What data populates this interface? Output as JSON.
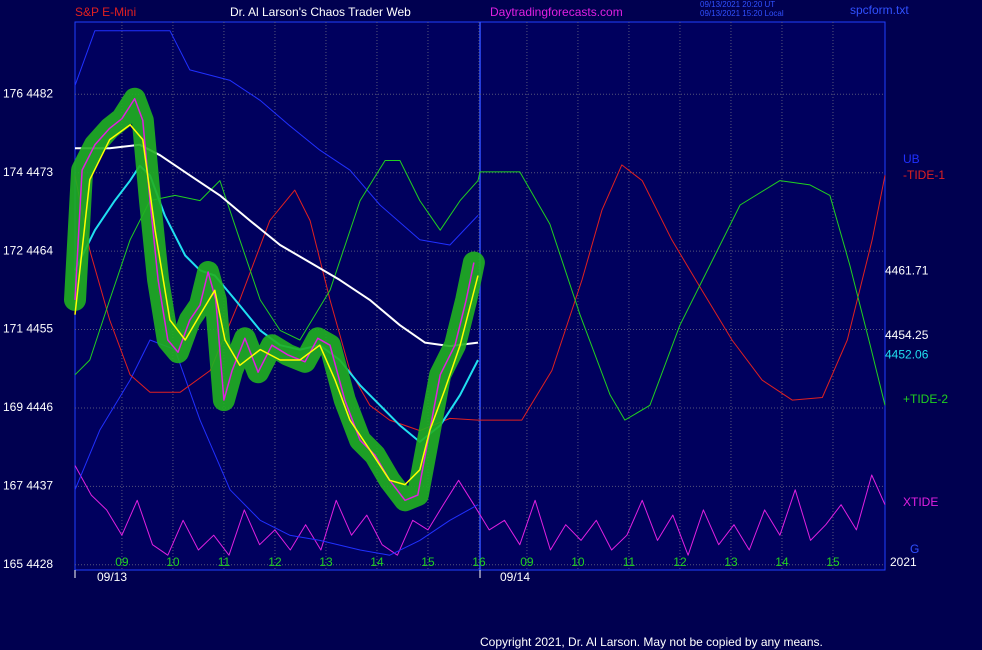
{
  "chart_data": {
    "type": "line",
    "header": {
      "instrument": "S&P E-Mini",
      "title": "Dr. Al Larson's Chaos Trader Web",
      "site": "Daytradingforecasts.com",
      "time_ut": "09/13/2021 20:20 UT",
      "time_local": "09/13/2021 15:20 Local",
      "file": "spcform.txt"
    },
    "dates": [
      "09/13",
      "09/14"
    ],
    "year": "2021",
    "corner_mark": "G",
    "copyright": "Copyright 2021, Dr. Al Larson. May not be copied by any means.",
    "xlim": [
      -0.92,
      14.96
    ],
    "ylim": [
      4427.4,
      4490.3
    ],
    "xticks": [
      {
        "value": 0,
        "label": "09"
      },
      {
        "value": 1,
        "label": "10"
      },
      {
        "value": 2,
        "label": "11"
      },
      {
        "value": 3,
        "label": "12"
      },
      {
        "value": 4,
        "label": "13"
      },
      {
        "value": 5,
        "label": "14"
      },
      {
        "value": 6,
        "label": "15"
      },
      {
        "value": 7,
        "label": "16"
      },
      {
        "value": 7.94,
        "label": "09"
      },
      {
        "value": 8.94,
        "label": "10"
      },
      {
        "value": 9.94,
        "label": "11"
      },
      {
        "value": 10.94,
        "label": "12"
      },
      {
        "value": 11.94,
        "label": "13"
      },
      {
        "value": 12.94,
        "label": "14"
      },
      {
        "value": 13.94,
        "label": "15"
      }
    ],
    "yticks": [
      {
        "value": 4428,
        "label": "165 4428"
      },
      {
        "value": 4437,
        "label": "167 4437"
      },
      {
        "value": 4446,
        "label": "169 4446"
      },
      {
        "value": 4455,
        "label": "171 4455"
      },
      {
        "value": 4464,
        "label": "172 4464"
      },
      {
        "value": 4473,
        "label": "174 4473"
      },
      {
        "value": 4482,
        "label": "176 4482"
      }
    ],
    "grid": true,
    "series": [
      {
        "name": "XTIDE",
        "color": "#e020e0",
        "width": 1,
        "x": [
          -0.92,
          -0.6,
          -0.3,
          0,
          0.3,
          0.6,
          0.9,
          1.2,
          1.5,
          1.8,
          2.1,
          2.4,
          2.7,
          3.0,
          3.3,
          3.6,
          3.9,
          4.2,
          4.5,
          4.8,
          5.1,
          5.4,
          5.7,
          6.0,
          6.3,
          6.6,
          6.9,
          7.2,
          7.5,
          7.8,
          8.1,
          8.4,
          8.7,
          9.0,
          9.3,
          9.6,
          9.9,
          10.2,
          10.5,
          10.8,
          11.1,
          11.4,
          11.7,
          12.0,
          12.3,
          12.6,
          12.9,
          13.2,
          13.5,
          13.8,
          14.1,
          14.4,
          14.7,
          14.96
        ],
        "values": [
          4439.4,
          4436.0,
          4434.3,
          4431.4,
          4435.4,
          4430.3,
          4429.1,
          4433.1,
          4429.7,
          4431.4,
          4429.1,
          4434.3,
          4430.3,
          4432.0,
          4429.7,
          4432.6,
          4429.7,
          4435.4,
          4431.4,
          4433.7,
          4430.3,
          4429.1,
          4433.1,
          4432.0,
          4434.9,
          4437.7,
          4434.9,
          4432.0,
          4433.1,
          4430.3,
          4435.4,
          4429.7,
          4432.6,
          4430.8,
          4433.1,
          4429.7,
          4431.4,
          4435.4,
          4430.8,
          4433.7,
          4429.1,
          4434.3,
          4430.3,
          4432.6,
          4429.7,
          4434.3,
          4431.4,
          4436.6,
          4430.8,
          4432.6,
          4434.9,
          4432.0,
          4438.3,
          4434.9
        ]
      },
      {
        "name": "UB",
        "color": "#2030ff",
        "width": 1,
        "x": [
          -0.92,
          -0.53,
          0.94,
          1.33,
          2.12,
          2.71,
          3.29,
          3.88,
          4.47,
          5.06,
          5.84,
          6.43,
          6.98
        ],
        "values": [
          4483.0,
          4489.3,
          4489.3,
          4484.8,
          4483.6,
          4481.3,
          4478.4,
          4475.6,
          4473.3,
          4469.3,
          4465.3,
          4464.7,
          4468.1
        ]
      },
      {
        "color": "#2030ff",
        "width": 1,
        "x": [
          -0.92,
          -0.43,
          0.16,
          0.55,
          1.04,
          1.53,
          2.12,
          2.71,
          3.29,
          3.88,
          4.67,
          5.25,
          5.84,
          6.43,
          6.98
        ],
        "values": [
          4436.6,
          4443.5,
          4449.2,
          4453.8,
          4452.7,
          4444.6,
          4436.6,
          4433.1,
          4431.4,
          4430.8,
          4429.7,
          4429.1,
          4430.8,
          4433.1,
          4434.9
        ]
      },
      {
        "name": "-TIDE-1",
        "color": "#e02020",
        "width": 1,
        "x": [
          -0.92,
          -0.63,
          -0.24,
          0.16,
          0.55,
          1.14,
          1.73,
          2.31,
          2.9,
          3.39,
          3.69,
          4.08,
          4.47,
          4.86,
          5.25,
          5.84,
          6.43,
          6.98,
          7.84,
          8.43,
          9.02,
          9.41,
          9.8,
          10.2,
          10.78,
          11.37,
          11.96,
          12.55,
          13.14,
          13.73,
          14.22,
          14.71,
          14.96
        ],
        "values": [
          4472.7,
          4464.1,
          4456.1,
          4449.8,
          4447.8,
          4447.8,
          4450.3,
          4458.4,
          4467.5,
          4471.0,
          4467.5,
          4458.4,
          4450.3,
          4446.3,
          4444.6,
          4443.4,
          4444.8,
          4444.6,
          4444.6,
          4450.3,
          4460.7,
          4468.7,
          4473.9,
          4472.1,
          4465.3,
          4459.5,
          4453.8,
          4449.2,
          4446.9,
          4447.2,
          4453.8,
          4465.3,
          4472.7
        ]
      },
      {
        "name": "+TIDE-2",
        "color": "#20d020",
        "width": 1,
        "x": [
          -0.92,
          -0.63,
          -0.24,
          0.16,
          0.55,
          1.04,
          1.53,
          1.92,
          2.31,
          2.71,
          3.1,
          3.49,
          4.08,
          4.67,
          5.16,
          5.45,
          5.84,
          6.24,
          6.63,
          6.98,
          7.02,
          7.8,
          8.39,
          8.98,
          9.57,
          9.86,
          10.35,
          10.94,
          11.53,
          12.12,
          12.9,
          13.49,
          13.88,
          14.27,
          14.67,
          14.96
        ],
        "values": [
          4449.8,
          4451.5,
          4458.4,
          4465.3,
          4469.8,
          4470.4,
          4469.8,
          4472.1,
          4465.3,
          4458.4,
          4454.9,
          4453.8,
          4459.5,
          4469.8,
          4474.4,
          4474.4,
          4469.8,
          4466.4,
          4469.8,
          4472.1,
          4473.1,
          4473.1,
          4467.1,
          4456.7,
          4447.5,
          4444.6,
          4446.3,
          4455.5,
          4462.4,
          4469.3,
          4472.1,
          4471.6,
          4470.4,
          4462.4,
          4453.2,
          4446.3
        ]
      },
      {
        "color": "#ffffff",
        "width": 2,
        "last_value": 4454.25,
        "x": [
          -0.92,
          -0.24,
          0.35,
          0.75,
          1.33,
          1.92,
          2.51,
          3.1,
          3.69,
          4.27,
          4.86,
          5.45,
          5.94,
          6.43,
          6.98
        ],
        "values": [
          4475.8,
          4475.8,
          4476.2,
          4475.0,
          4472.7,
          4470.4,
          4467.5,
          4464.7,
          4462.7,
          4460.7,
          4458.4,
          4455.5,
          4453.5,
          4453.1,
          4453.5
        ]
      },
      {
        "color": "#20e0f0",
        "width": 2,
        "last_value": 4452.06,
        "x": [
          -0.92,
          -0.53,
          -0.14,
          0.16,
          0.35,
          0.55,
          0.84,
          1.24,
          1.53,
          1.82,
          2.22,
          2.71,
          3.1,
          3.49,
          3.88,
          4.27,
          4.67,
          5.06,
          5.45,
          5.84,
          6.24,
          6.63,
          6.98
        ],
        "values": [
          4461.8,
          4466.4,
          4469.8,
          4472.1,
          4473.8,
          4472.7,
          4468.1,
          4463.5,
          4461.8,
          4461.2,
          4458.4,
          4454.9,
          4453.2,
          4452.7,
          4453.2,
          4451.5,
          4448.6,
          4446.3,
          4444.0,
          4442.1,
          4444.0,
          4447.5,
          4451.5
        ]
      },
      {
        "color": "#e020e0",
        "width": 1.5,
        "glow": "#20b020",
        "last_value": 4461.71,
        "x": [
          -0.92,
          -0.78,
          -0.53,
          -0.24,
          0,
          0.25,
          0.41,
          0.55,
          0.71,
          0.9,
          1.1,
          1.33,
          1.53,
          1.69,
          1.84,
          2.0,
          2.16,
          2.41,
          2.67,
          2.94,
          3.25,
          3.59,
          3.84,
          4.08,
          4.37,
          4.67,
          4.96,
          5.25,
          5.55,
          5.8,
          6.0,
          6.24,
          6.53,
          6.75,
          6.9
        ],
        "values": [
          4458.4,
          4473.3,
          4476.2,
          4478.1,
          4479.2,
          4481.5,
          4479.0,
          4469.8,
          4460.7,
          4453.8,
          4452.4,
          4456.1,
          4457.8,
          4461.6,
          4458.4,
          4446.9,
          4450.3,
          4454.0,
          4450.1,
          4453.2,
          4452.1,
          4451.3,
          4454.0,
          4453.2,
          4446.9,
          4442.3,
          4440.6,
          4437.7,
          4435.4,
          4436.0,
          4442.3,
          4449.8,
          4453.2,
          4458.4,
          4462.7
        ]
      },
      {
        "color": "#ffff00",
        "width": 1.5,
        "x": [
          -0.92,
          -0.63,
          -0.24,
          0.16,
          0.41,
          0.65,
          0.94,
          1.24,
          1.53,
          1.82,
          2.02,
          2.31,
          2.71,
          3.1,
          3.49,
          3.88,
          4.18,
          4.47,
          4.86,
          5.25,
          5.55,
          5.84,
          6.04,
          6.33,
          6.63,
          6.98
        ],
        "values": [
          4456.7,
          4472.2,
          4476.8,
          4478.5,
          4476.8,
          4466.4,
          4456.1,
          4453.8,
          4456.7,
          4459.5,
          4453.8,
          4450.9,
          4452.7,
          4451.5,
          4451.5,
          4453.2,
          4449.2,
          4444.6,
          4441.2,
          4437.7,
          4437.2,
          4438.9,
          4443.5,
          4448.1,
          4453.2,
          4461.2
        ]
      }
    ]
  }
}
